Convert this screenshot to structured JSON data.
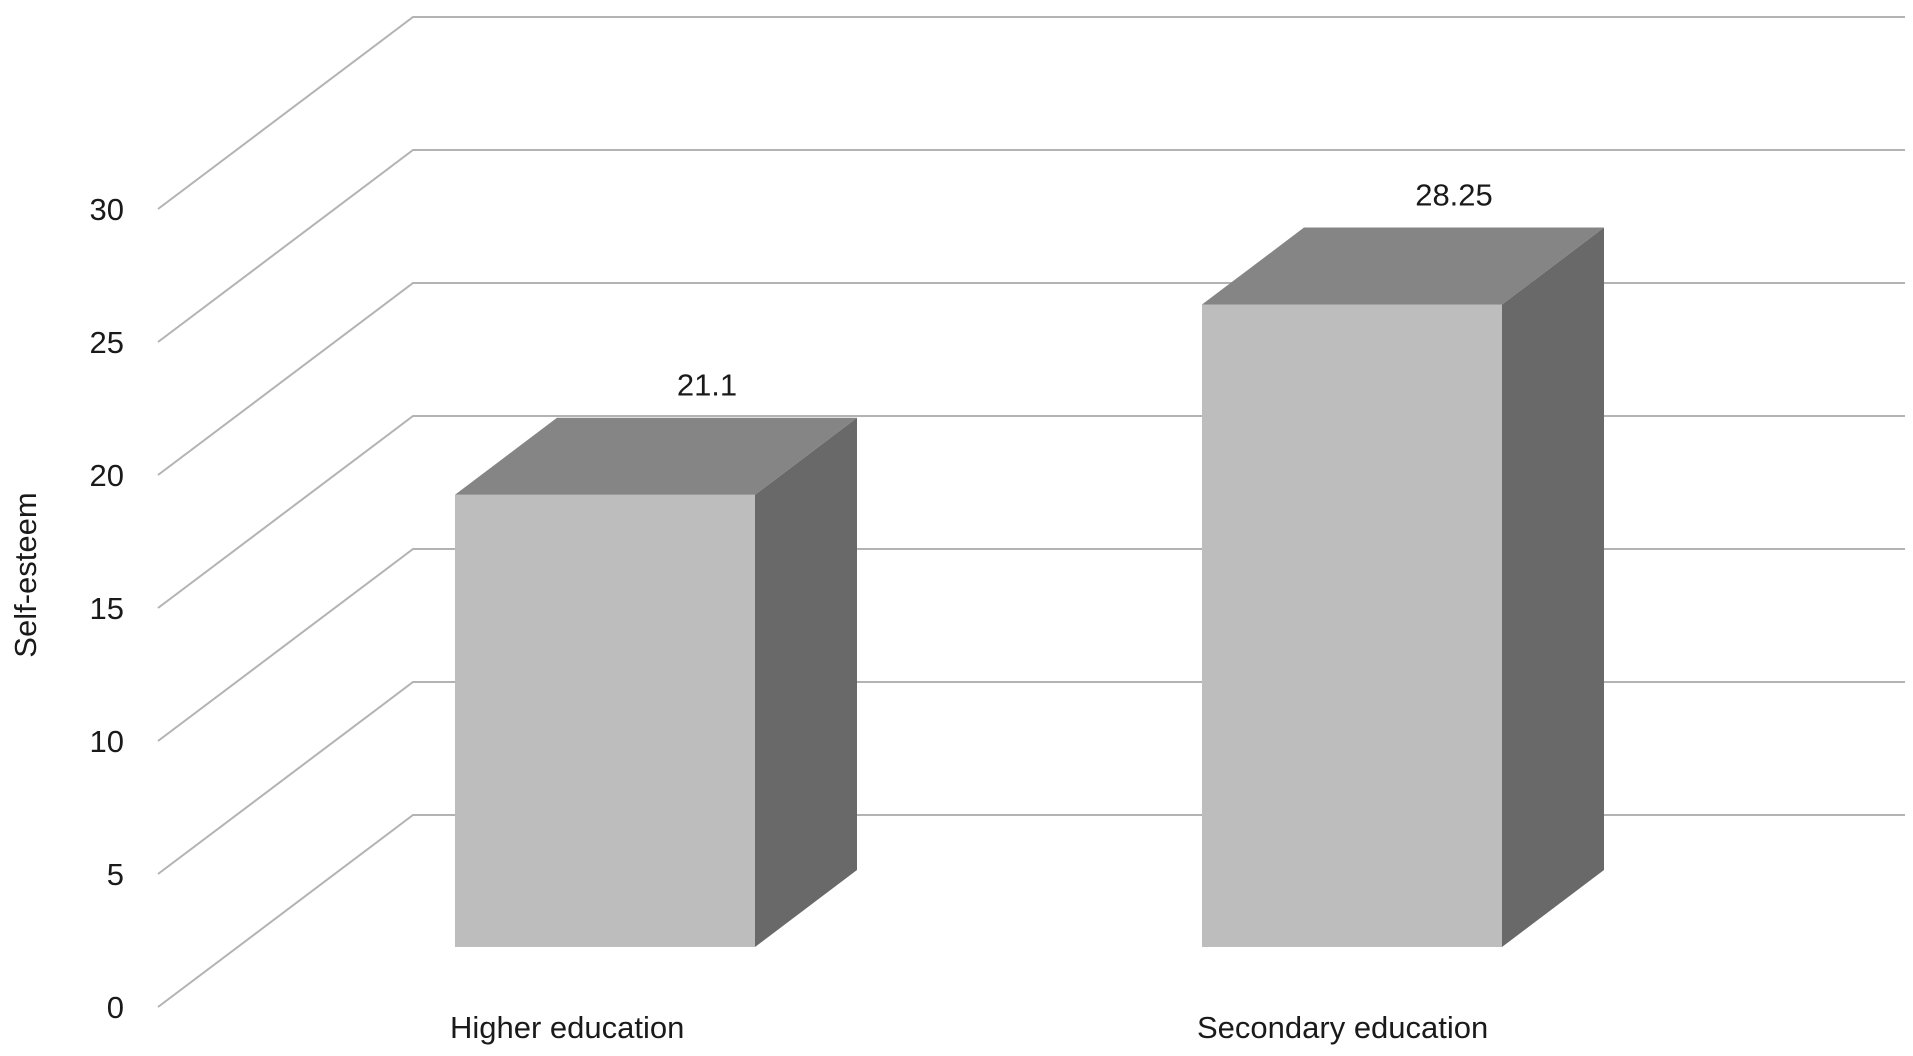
{
  "chart_data": {
    "type": "bar",
    "style": "3d-column",
    "categories": [
      "Higher education",
      "Secondary education"
    ],
    "values": [
      21.1,
      28.25
    ],
    "data_labels": [
      "21.1",
      "28.25"
    ],
    "title": "",
    "xlabel": "",
    "ylabel": "Self-esteem",
    "ylim": [
      0,
      30
    ],
    "yticks": [
      "0",
      "5",
      "10",
      "15",
      "20",
      "25",
      "30"
    ],
    "grid": true,
    "legend": "none",
    "colors": {
      "bar_front": "#bdbdbd",
      "bar_top": "#858585",
      "bar_side": "#696969",
      "grid": "#b3b3b3",
      "text": "#1a1a1a"
    }
  }
}
